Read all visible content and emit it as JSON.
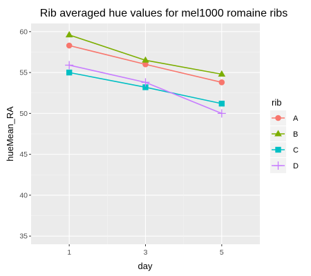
{
  "chart_data": {
    "type": "line",
    "title": "Rib averaged hue values for mel1000 romaine ribs",
    "xlabel": "day",
    "ylabel": "hueMean_RA",
    "x": [
      1,
      3,
      5
    ],
    "x_ticks": [
      "1",
      "3",
      "5"
    ],
    "xlim": [
      0,
      6
    ],
    "ylim": [
      34,
      61
    ],
    "y_ticks": [
      "35",
      "40",
      "45",
      "50",
      "55",
      "60"
    ],
    "grid": true,
    "legend_title": "rib",
    "legend_position": "right",
    "series": [
      {
        "name": "A",
        "values": [
          58.3,
          56.0,
          53.8
        ],
        "color": "#f8766d",
        "marker": "circle"
      },
      {
        "name": "B",
        "values": [
          59.6,
          56.5,
          54.8
        ],
        "color": "#7cae00",
        "marker": "triangle"
      },
      {
        "name": "C",
        "values": [
          55.0,
          53.2,
          51.2
        ],
        "color": "#00bfc4",
        "marker": "square"
      },
      {
        "name": "D",
        "values": [
          55.9,
          53.8,
          50.0
        ],
        "color": "#c77cff",
        "marker": "plus"
      }
    ]
  }
}
